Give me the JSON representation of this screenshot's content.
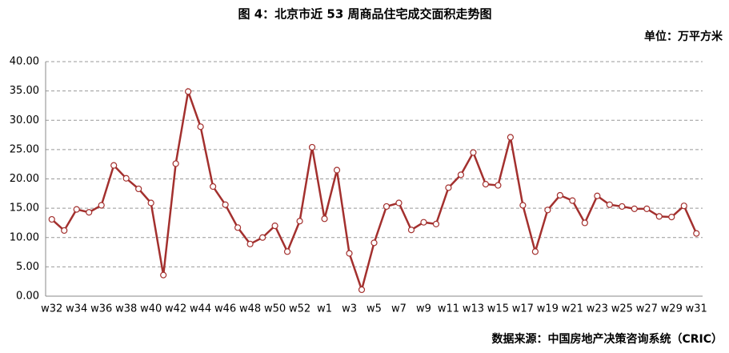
{
  "chart_data": {
    "type": "line",
    "title": "图 4：北京市近 53 周商品住宅成交面积走势图",
    "unit_label": "单位：万平方米",
    "source": "数据来源：中国房地产决策咨询系统（CRIC）",
    "categories": [
      "w32",
      null,
      "w34",
      null,
      "w36",
      null,
      "w38",
      null,
      "w40",
      null,
      "w42",
      null,
      "w44",
      null,
      "w46",
      null,
      "w48",
      null,
      "w50",
      null,
      "w52",
      null,
      "w1",
      null,
      "w3",
      null,
      "w5",
      null,
      "w7",
      null,
      "w9",
      null,
      "w11",
      null,
      "w13",
      null,
      "w15",
      null,
      "w17",
      null,
      "w19",
      null,
      "w21",
      null,
      "w23",
      null,
      "w25",
      null,
      "w27",
      null,
      "w29",
      null,
      "w31"
    ],
    "series": [
      {
        "name": "成交面积",
        "color": "#a3302e",
        "values": [
          13.1,
          11.2,
          14.8,
          14.3,
          15.5,
          22.3,
          20.1,
          18.3,
          15.9,
          3.6,
          22.6,
          34.9,
          28.9,
          18.7,
          15.6,
          11.7,
          8.9,
          10.0,
          12.0,
          7.6,
          12.8,
          25.4,
          13.2,
          21.5,
          7.3,
          1.1,
          9.1,
          15.3,
          15.9,
          11.3,
          12.6,
          12.3,
          18.5,
          20.7,
          24.5,
          19.1,
          18.9,
          27.1,
          15.5,
          7.6,
          14.7,
          17.2,
          16.3,
          12.5,
          17.1,
          15.6,
          15.3,
          14.9,
          14.9,
          13.6,
          13.5,
          15.4,
          10.7
        ]
      }
    ],
    "ylim": [
      0,
      40
    ],
    "yticks": [
      {
        "value": 0,
        "label": "0.00"
      },
      {
        "value": 5,
        "label": "5.00"
      },
      {
        "value": 10,
        "label": "10.00"
      },
      {
        "value": 15,
        "label": "15.00"
      },
      {
        "value": 20,
        "label": "20.00"
      },
      {
        "value": 25,
        "label": "25.00"
      },
      {
        "value": 30,
        "label": "30.00"
      },
      {
        "value": 35,
        "label": "35.00"
      },
      {
        "value": 40,
        "label": "40.00"
      }
    ],
    "grid": true
  }
}
